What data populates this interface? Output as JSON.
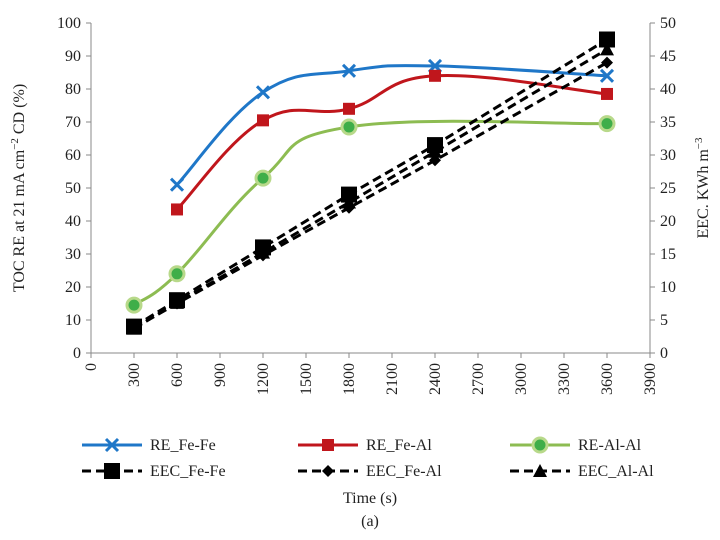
{
  "chart_data": {
    "type": "line",
    "caption": "(a)",
    "xlabel": "Time (s)",
    "ylabel_left": "TOC RE at 21 mA cm−2 CD (%)",
    "ylabel_left_parts": {
      "before": "TOC RE at 21 mA cm",
      "sup": "−2",
      "after": " CD (%)"
    },
    "ylabel_right": "EEC. KWh m−3",
    "ylabel_right_parts": {
      "before": "EEC. KWh m",
      "sup": "−3",
      "after": ""
    },
    "x_range": [
      0,
      3900
    ],
    "x_ticks": [
      "0",
      "300",
      "600",
      "900",
      "1200",
      "1500",
      "1800",
      "2100",
      "2400",
      "2700",
      "3000",
      "3300",
      "3600",
      "3900"
    ],
    "ylim_left": [
      0,
      100
    ],
    "y_ticks_left": [
      "0",
      "10",
      "20",
      "30",
      "40",
      "50",
      "60",
      "70",
      "80",
      "90",
      "100"
    ],
    "ylim_right": [
      0,
      50
    ],
    "y_ticks_right": [
      "0",
      "5",
      "10",
      "15",
      "20",
      "25",
      "30",
      "35",
      "40",
      "45",
      "50"
    ],
    "grid": false,
    "legend_position": "bottom",
    "series": [
      {
        "name": "RE_Fe-Fe",
        "axis": "left",
        "color": "#1f77c8",
        "marker": "x",
        "style": "smooth-solid",
        "x": [
          600,
          1200,
          1800,
          2400,
          3600
        ],
        "y": [
          51,
          79,
          85.5,
          87,
          84
        ]
      },
      {
        "name": "RE_Fe-Al",
        "axis": "left",
        "color": "#c0161c",
        "marker": "square",
        "style": "smooth-solid",
        "x": [
          600,
          1200,
          1800,
          2400,
          3600
        ],
        "y": [
          43.5,
          70.5,
          74,
          84,
          78.5
        ]
      },
      {
        "name": "RE-Al-Al",
        "axis": "left",
        "color": "#8dbc52",
        "marker": "circle",
        "style": "smooth-solid",
        "x": [
          300,
          600,
          1200,
          1800,
          3600
        ],
        "y": [
          14.5,
          24,
          53,
          68.5,
          69.5
        ]
      },
      {
        "name": "EEC_Fe-Fe",
        "axis": "right",
        "color": "#000000",
        "marker": "square",
        "style": "dashed",
        "x": [
          300,
          600,
          1200,
          1800,
          2400,
          3600
        ],
        "y": [
          4,
          8,
          16,
          24,
          31.5,
          47.5
        ]
      },
      {
        "name": "EEC_Fe-Al",
        "axis": "right",
        "color": "#000000",
        "marker": "diamond",
        "style": "dashed",
        "x": [
          300,
          600,
          1200,
          1800,
          2400,
          3600
        ],
        "y": [
          3.8,
          7.5,
          14.8,
          22,
          29.2,
          44
        ]
      },
      {
        "name": "EEC_Al-Al",
        "axis": "right",
        "color": "#000000",
        "marker": "triangle",
        "style": "dashed",
        "x": [
          300,
          600,
          1200,
          1800,
          2400,
          3600
        ],
        "y": [
          3.7,
          7.6,
          15.2,
          22.8,
          30.5,
          46
        ]
      }
    ]
  }
}
